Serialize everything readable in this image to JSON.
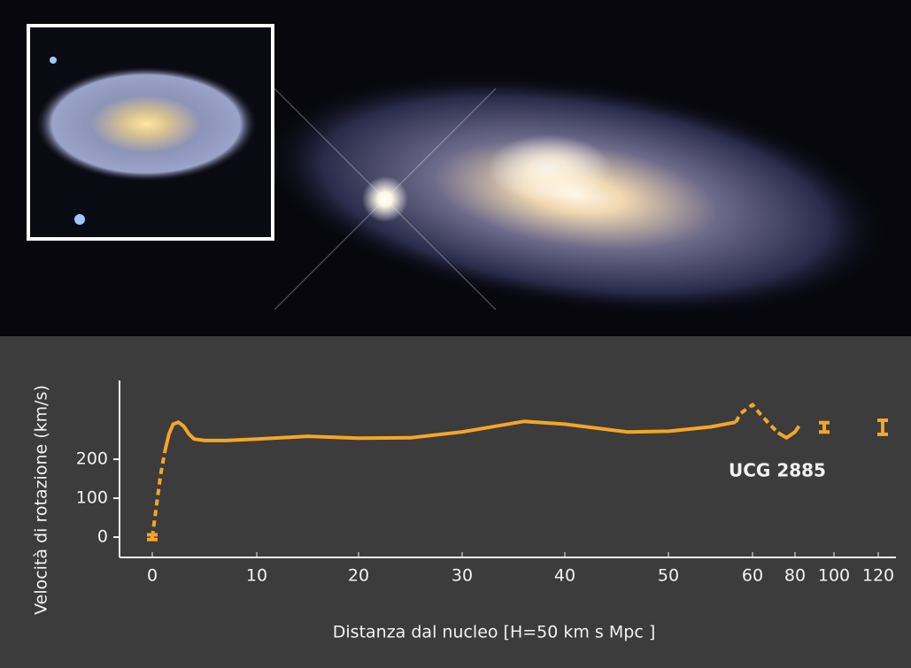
{
  "chart_data": {
    "type": "line",
    "y_label": "Velocità di rotazione (km/s)",
    "x_label": "Distanza dal nucleo [H=50 km s   Mpc   ]",
    "annotation": "UCG 2885",
    "color": "#f5a623",
    "ylim": [
      -52,
      400
    ],
    "yticks": [
      0,
      100,
      200
    ],
    "xticks": [
      0,
      10,
      20,
      30,
      40,
      50,
      60,
      80,
      100,
      120
    ],
    "series": [
      {
        "dashed": true,
        "x": [
          0,
          0.4,
          0.8,
          1.2
        ],
        "values": [
          0,
          80,
          160,
          220
        ]
      },
      {
        "dashed": false,
        "x": [
          1.2,
          1.6,
          2,
          2.5,
          3,
          3.5,
          4,
          5,
          7,
          10,
          15,
          20,
          25,
          30,
          36,
          40,
          46,
          50,
          55,
          58
        ],
        "values": [
          220,
          265,
          290,
          295,
          285,
          265,
          252,
          248,
          248,
          252,
          259,
          254,
          255,
          270,
          297,
          290,
          270,
          272,
          283,
          295
        ]
      },
      {
        "dashed": true,
        "x": [
          58,
          58.6,
          60,
          63,
          68,
          72
        ],
        "values": [
          295,
          318,
          340,
          320,
          290,
          268
        ]
      },
      {
        "dashed": false,
        "x": [
          72,
          76,
          80,
          82
        ],
        "values": [
          268,
          255,
          270,
          285
        ]
      }
    ],
    "error_points": {
      "x": [
        0,
        95,
        122
      ],
      "values": [
        0,
        282,
        282
      ],
      "errors": [
        6,
        12,
        18
      ]
    }
  }
}
